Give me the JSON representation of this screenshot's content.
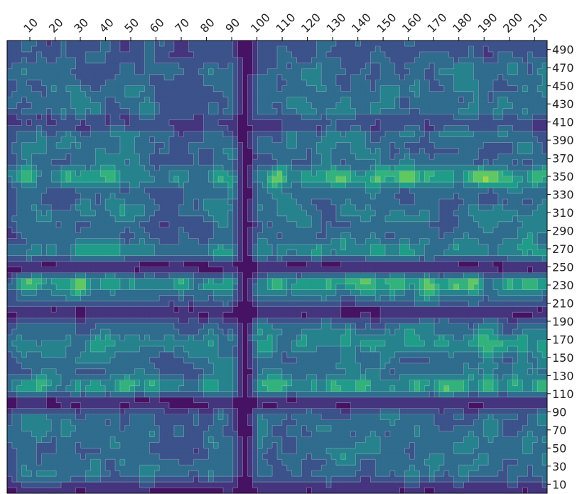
{
  "chart_data": {
    "type": "heatmap",
    "title": "",
    "xlabel": "",
    "ylabel": "",
    "colormap": "viridis",
    "plot_style": "filled contour with thin light isolines",
    "x_axis_position": "top",
    "y_axis_position": "right",
    "xlim": [
      1,
      215
    ],
    "ylim": [
      0,
      500
    ],
    "x_ticks": [
      10,
      20,
      30,
      40,
      50,
      60,
      70,
      80,
      90,
      100,
      110,
      120,
      130,
      140,
      150,
      160,
      170,
      180,
      190,
      200,
      210
    ],
    "y_ticks": [
      10,
      30,
      50,
      70,
      90,
      110,
      130,
      150,
      170,
      190,
      210,
      230,
      250,
      270,
      290,
      310,
      330,
      350,
      370,
      390,
      410,
      430,
      450,
      470,
      490
    ],
    "low_bands_y": [
      0,
      100,
      200,
      250,
      410
    ],
    "low_columns_x": [
      94,
      96
    ],
    "hot_rows_y": [
      345,
      230,
      160,
      125
    ],
    "value_range": [
      0,
      1
    ],
    "colors": {
      "background": "#ffffff",
      "axis": "#000000",
      "isoline": "#c8c8d2"
    }
  }
}
